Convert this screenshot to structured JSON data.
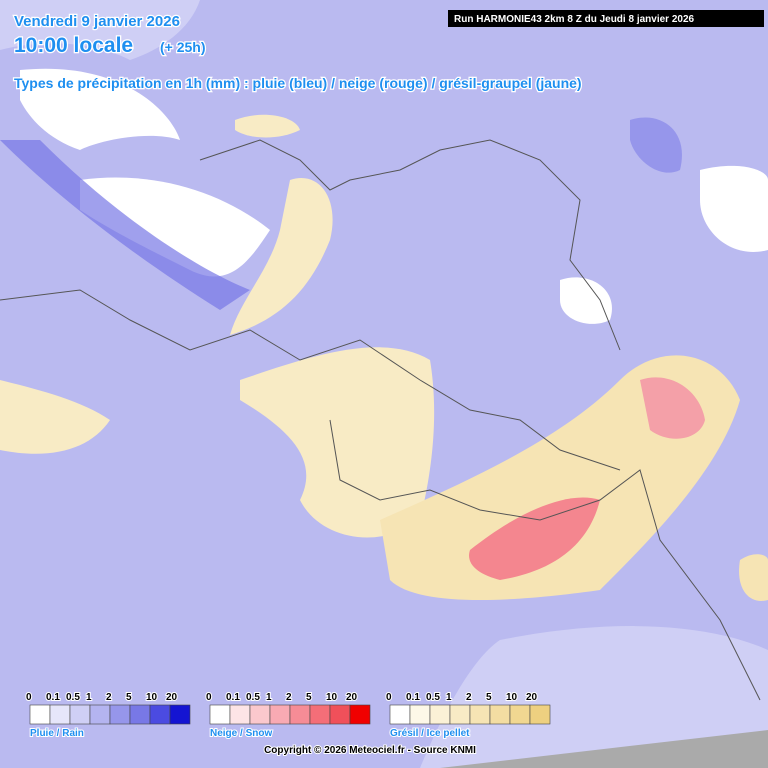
{
  "header": {
    "date": "Vendredi 9 janvier 2026",
    "time": "10:00 locale",
    "lead": "(+ 25h)",
    "run": "Run HARMONIE43 2km 8 Z du Jeudi 8 janvier 2026",
    "subtitle": "Types de précipitation en 1h (mm) : pluie (bleu) / neige (rouge) / grésil-graupel (jaune)"
  },
  "legend": {
    "scale": [
      "0",
      "0.1",
      "0.5",
      "1",
      "2",
      "5",
      "10",
      "20"
    ],
    "groups": [
      {
        "label": "Pluie / Rain",
        "colors": [
          "#ffffff",
          "#e6e6fa",
          "#cfcff5",
          "#b4b4f0",
          "#9696eb",
          "#7878e6",
          "#4b4be1",
          "#1414d2"
        ]
      },
      {
        "label": "Neige / Snow",
        "colors": [
          "#ffffff",
          "#fde4e6",
          "#fbc8cd",
          "#f9aab3",
          "#f68c96",
          "#f46e78",
          "#f0505a",
          "#f00000"
        ]
      },
      {
        "label": "Grésil / Ice pellet",
        "colors": [
          "#ffffff",
          "#fdf8e8",
          "#fbf1d6",
          "#f8ebc5",
          "#f6e4b4",
          "#f3dda2",
          "#f1d791",
          "#eed080"
        ]
      }
    ]
  },
  "footer": "Copyright © 2026 Meteociel.fr - Source KNMI"
}
